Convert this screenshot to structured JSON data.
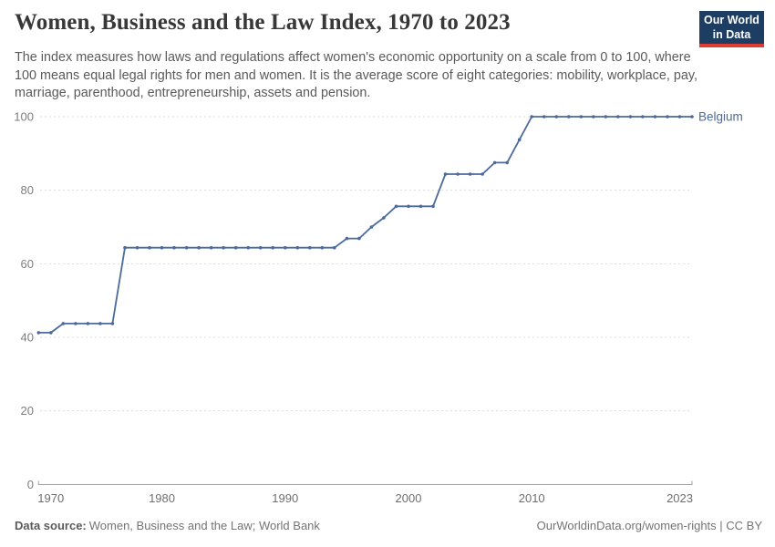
{
  "header": {
    "title": "Women, Business and the Law Index, 1970 to 2023",
    "subtitle": "The index measures how laws and regulations affect women's economic opportunity on a scale from 0 to 100, where 100 means equal legal rights for men and women. It is the average score of eight categories: mobility, workplace, pay, marriage, parenthood, entrepreneurship, assets and pension.",
    "logo": {
      "line1": "Our World",
      "line2": "in Data"
    }
  },
  "chart_data": {
    "type": "line",
    "title": "Women, Business and the Law Index, 1970 to 2023",
    "xlabel": "",
    "ylabel": "",
    "xlim": [
      1970,
      2023
    ],
    "ylim": [
      0,
      100
    ],
    "x_ticks": [
      "1970",
      "1980",
      "1990",
      "2000",
      "2010",
      "2023"
    ],
    "x_tick_years": [
      1970,
      1980,
      1990,
      2000,
      2010,
      2023
    ],
    "y_ticks": [
      0,
      20,
      40,
      60,
      80,
      100
    ],
    "grid": "horizontal-dashed",
    "legend_position": "end-of-line-label",
    "series": [
      {
        "name": "Belgium",
        "color": "#4C6A9C",
        "x": [
          1970,
          1971,
          1972,
          1973,
          1974,
          1975,
          1976,
          1977,
          1978,
          1979,
          1980,
          1981,
          1982,
          1983,
          1984,
          1985,
          1986,
          1987,
          1988,
          1989,
          1990,
          1991,
          1992,
          1993,
          1994,
          1995,
          1996,
          1997,
          1998,
          1999,
          2000,
          2001,
          2002,
          2003,
          2004,
          2005,
          2006,
          2007,
          2008,
          2009,
          2010,
          2011,
          2012,
          2013,
          2014,
          2015,
          2016,
          2017,
          2018,
          2019,
          2020,
          2021,
          2022,
          2023
        ],
        "values": [
          41.25,
          41.25,
          43.75,
          43.75,
          43.75,
          43.75,
          43.75,
          64.375,
          64.375,
          64.375,
          64.375,
          64.375,
          64.375,
          64.375,
          64.375,
          64.375,
          64.375,
          64.375,
          64.375,
          64.375,
          64.375,
          64.375,
          64.375,
          64.375,
          64.375,
          66.875,
          66.875,
          70,
          72.5,
          75.625,
          75.625,
          75.625,
          75.625,
          84.375,
          84.375,
          84.375,
          84.375,
          87.5,
          87.5,
          93.75,
          100,
          100,
          100,
          100,
          100,
          100,
          100,
          100,
          100,
          100,
          100,
          100,
          100,
          100
        ]
      }
    ]
  },
  "footer": {
    "source_label": "Data source:",
    "source_value": "Women, Business and the Law; World Bank",
    "credit": "OurWorldinData.org/women-rights | CC BY"
  },
  "colors": {
    "line": "#4C6A9C",
    "gridline": "#dcdcdc",
    "axis": "#a3a3a3",
    "title_text": "#383838",
    "subtitle_text": "#5a5a5a",
    "logo_bg": "#1d3d63",
    "logo_stripe": "#dc3c32"
  }
}
